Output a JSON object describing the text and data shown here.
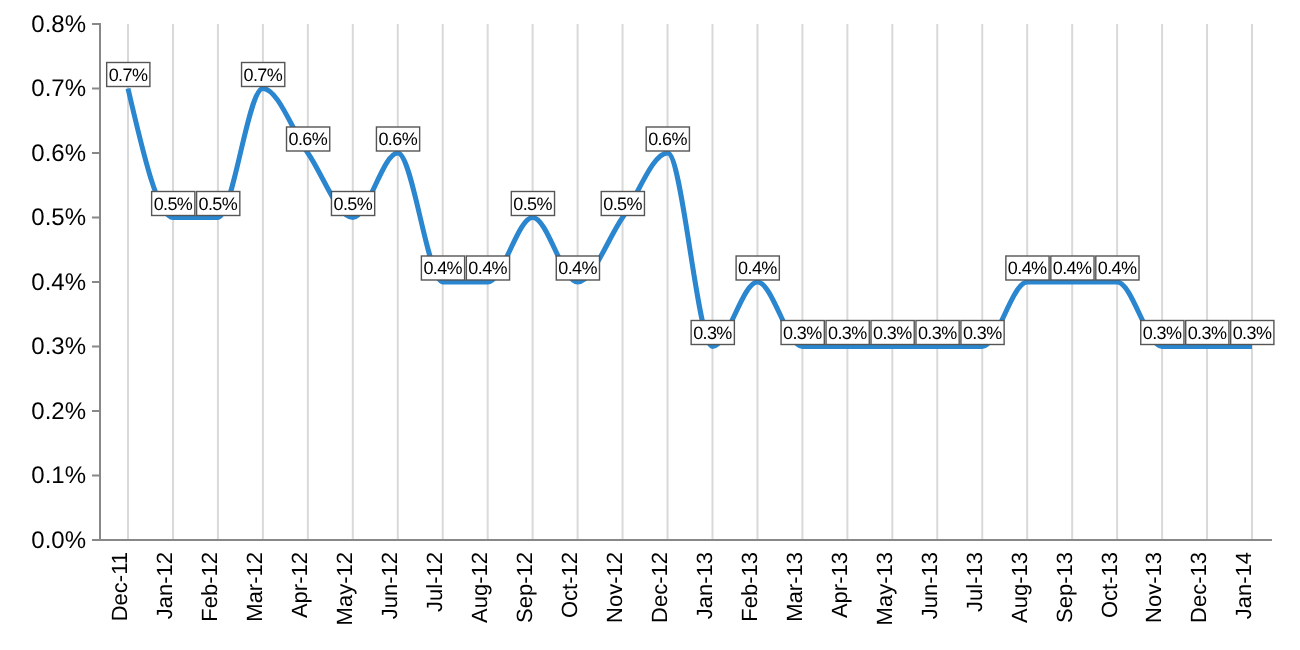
{
  "chart_data": {
    "type": "line",
    "categories": [
      "Dec-11",
      "Jan-12",
      "Feb-12",
      "Mar-12",
      "Apr-12",
      "May-12",
      "Jun-12",
      "Jul-12",
      "Aug-12",
      "Sep-12",
      "Oct-12",
      "Nov-12",
      "Dec-12",
      "Jan-13",
      "Feb-13",
      "Mar-13",
      "Apr-13",
      "May-13",
      "Jun-13",
      "Jul-13",
      "Aug-13",
      "Sep-13",
      "Oct-13",
      "Nov-13",
      "Dec-13",
      "Jan-14"
    ],
    "series": [
      {
        "color": "#2a86cf",
        "values": [
          0.7,
          0.5,
          0.5,
          0.7,
          0.6,
          0.5,
          0.6,
          0.4,
          0.4,
          0.5,
          0.4,
          0.5,
          0.6,
          0.3,
          0.4,
          0.3,
          0.3,
          0.3,
          0.3,
          0.3,
          0.4,
          0.4,
          0.4,
          0.3,
          0.3,
          0.3
        ],
        "value_labels": [
          "0.7%",
          "0.5%",
          "0.5%",
          "0.7%",
          "0.6%",
          "0.5%",
          "0.6%",
          "0.4%",
          "0.4%",
          "0.5%",
          "0.4%",
          "0.5%",
          "0.6%",
          "0.3%",
          "0.4%",
          "0.3%",
          "0.3%",
          "0.3%",
          "0.3%",
          "0.3%",
          "0.4%",
          "0.4%",
          "0.4%",
          "0.3%",
          "0.3%",
          "0.3%"
        ]
      }
    ],
    "ylim": [
      0,
      0.8
    ],
    "yticks": [
      {
        "value": 0,
        "label": "0.0%"
      },
      {
        "value": 0.1,
        "label": "0.1%"
      },
      {
        "value": 0.2,
        "label": "0.2%"
      },
      {
        "value": 0.3,
        "label": "0.3%"
      },
      {
        "value": 0.4,
        "label": "0.4%"
      },
      {
        "value": 0.5,
        "label": "0.5%"
      },
      {
        "value": 0.6,
        "label": "0.6%"
      },
      {
        "value": 0.7,
        "label": "0.7%"
      },
      {
        "value": 0.8,
        "label": "0.8%"
      }
    ],
    "grid": "x",
    "marker": "none",
    "line_style": "solid"
  }
}
